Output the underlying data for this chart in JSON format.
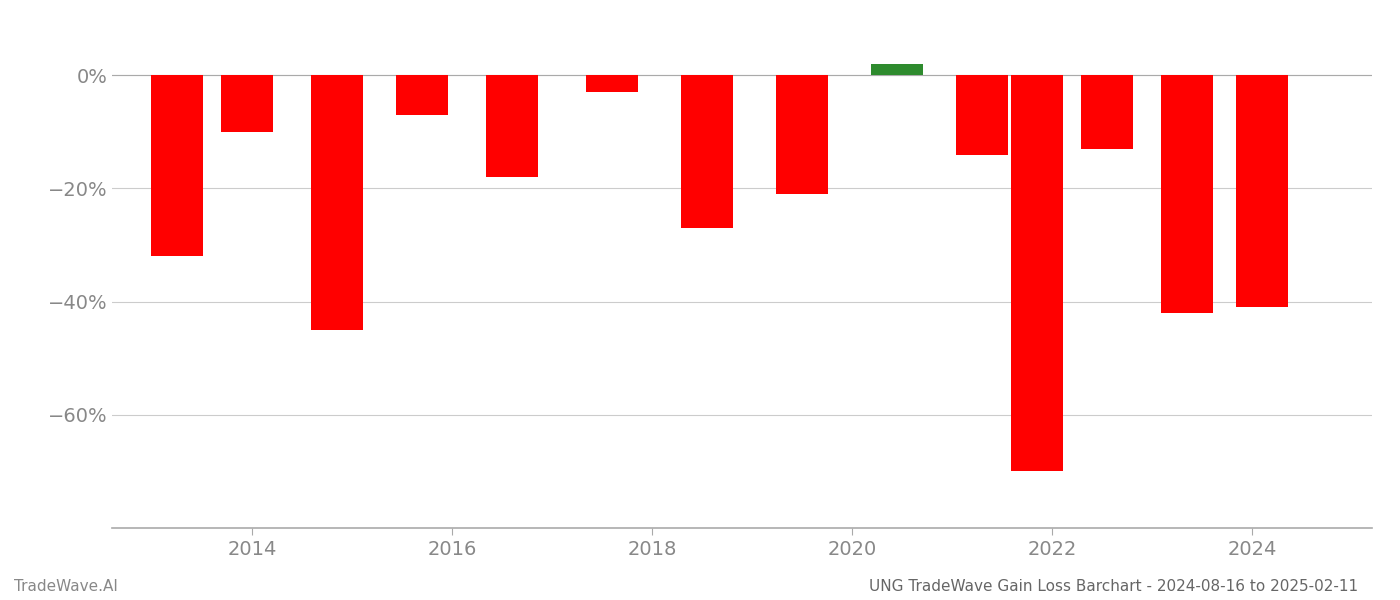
{
  "bar_positions": [
    2013.25,
    2013.95,
    2014.85,
    2015.7,
    2016.6,
    2017.6,
    2018.55,
    2019.5,
    2020.45,
    2021.3,
    2021.85,
    2022.55,
    2023.35,
    2024.1
  ],
  "values": [
    -32,
    -10,
    -45,
    -7,
    -18,
    -3,
    -27,
    -21,
    2,
    -14,
    -70,
    -13,
    -42,
    -41
  ],
  "colors": [
    "#ff0000",
    "#ff0000",
    "#ff0000",
    "#ff0000",
    "#ff0000",
    "#ff0000",
    "#ff0000",
    "#ff0000",
    "#2e8b2e",
    "#ff0000",
    "#ff0000",
    "#ff0000",
    "#ff0000",
    "#ff0000"
  ],
  "bar_width": 0.52,
  "xlim": [
    2012.6,
    2025.2
  ],
  "ylim": [
    -80,
    8
  ],
  "yticks": [
    0,
    -20,
    -40,
    -60
  ],
  "ytick_labels": [
    "0%",
    "−20%",
    "−40%",
    "−60%"
  ],
  "xtick_positions": [
    2014,
    2016,
    2018,
    2020,
    2022,
    2024
  ],
  "xtick_labels": [
    "2014",
    "2016",
    "2018",
    "2020",
    "2022",
    "2024"
  ],
  "title": "UNG TradeWave Gain Loss Barchart - 2024-08-16 to 2025-02-11",
  "watermark": "TradeWave.AI",
  "bg_color": "#ffffff",
  "grid_color": "#cccccc",
  "axis_color": "#aaaaaa",
  "title_color": "#666666",
  "tick_color": "#888888",
  "tick_fontsize": 14
}
